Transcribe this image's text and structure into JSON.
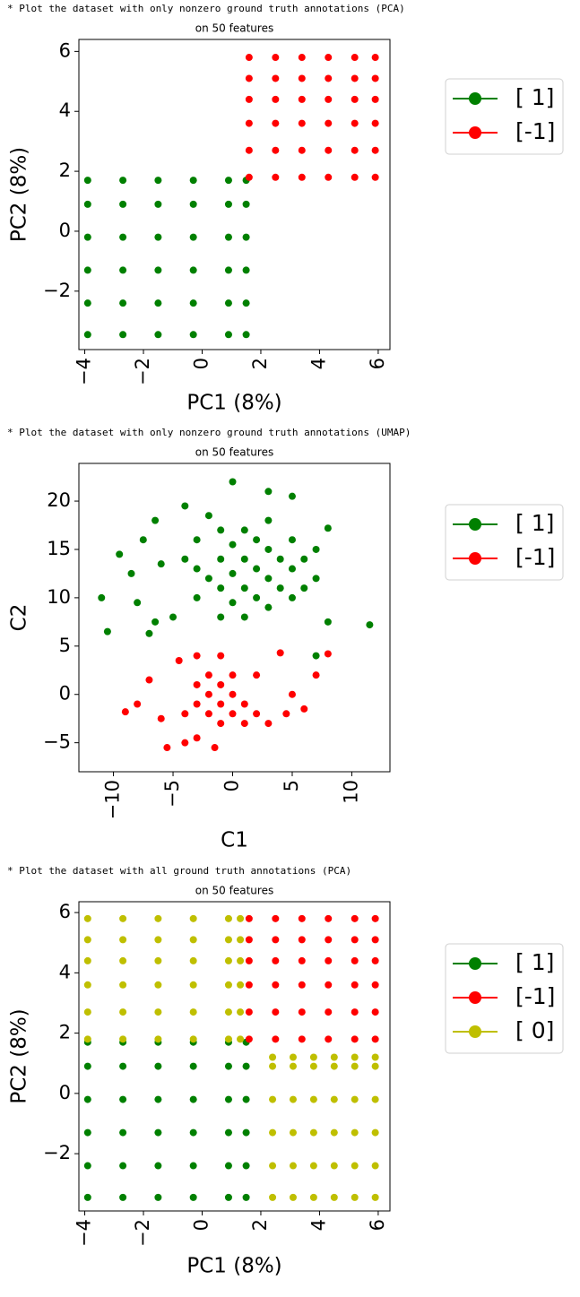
{
  "chart_data": [
    {
      "type": "scatter",
      "caption": "* Plot the dataset with only nonzero ground truth annotations (PCA)",
      "title": "on 50 features",
      "xlabel": "PC1 (8%)",
      "ylabel": "PC2 (8%)",
      "xlim": [
        -4.2,
        6.4
      ],
      "xticks": [
        {
          "value": -4,
          "label": "−4"
        },
        {
          "value": -2,
          "label": "−2"
        },
        0,
        2,
        4,
        6
      ],
      "ylim": [
        -3.95,
        6.4
      ],
      "yticks": [
        {
          "value": -2,
          "label": "−2"
        },
        0,
        2,
        4,
        6
      ],
      "legend": "outside-right",
      "series": [
        {
          "name": "[ 1]",
          "color": "#008000",
          "x": [
            -3.9,
            -3.9,
            -3.9,
            -3.9,
            -3.9,
            -3.9,
            -2.7,
            -2.7,
            -2.7,
            -2.7,
            -2.7,
            -2.7,
            -1.5,
            -1.5,
            -1.5,
            -1.5,
            -1.5,
            -1.5,
            -0.3,
            -0.3,
            -0.3,
            -0.3,
            -0.3,
            -0.3,
            0.9,
            0.9,
            0.9,
            0.9,
            0.9,
            0.9,
            1.5,
            1.5,
            1.5,
            1.5,
            1.5,
            1.5
          ],
          "y": [
            -3.45,
            -2.4,
            -1.3,
            -0.2,
            0.9,
            1.7,
            -3.45,
            -2.4,
            -1.3,
            -0.2,
            0.9,
            1.7,
            -3.45,
            -2.4,
            -1.3,
            -0.2,
            0.9,
            1.7,
            -3.45,
            -2.4,
            -1.3,
            -0.2,
            0.9,
            1.7,
            -3.45,
            -2.4,
            -1.3,
            -0.2,
            0.9,
            1.7,
            -3.45,
            -2.4,
            -1.3,
            -0.2,
            0.9,
            1.7
          ]
        },
        {
          "name": "[-1]",
          "color": "#ff0000",
          "x": [
            1.6,
            1.6,
            1.6,
            1.6,
            1.6,
            1.6,
            2.5,
            2.5,
            2.5,
            2.5,
            2.5,
            2.5,
            3.4,
            3.4,
            3.4,
            3.4,
            3.4,
            3.4,
            4.3,
            4.3,
            4.3,
            4.3,
            4.3,
            4.3,
            5.2,
            5.2,
            5.2,
            5.2,
            5.2,
            5.2,
            5.9,
            5.9,
            5.9,
            5.9,
            5.9,
            5.9
          ],
          "y": [
            1.8,
            2.7,
            3.6,
            4.4,
            5.1,
            5.8,
            1.8,
            2.7,
            3.6,
            4.4,
            5.1,
            5.8,
            1.8,
            2.7,
            3.6,
            4.4,
            5.1,
            5.8,
            1.8,
            2.7,
            3.6,
            4.4,
            5.1,
            5.8,
            1.8,
            2.7,
            3.6,
            4.4,
            5.1,
            5.8,
            1.8,
            2.7,
            3.6,
            4.4,
            5.1,
            5.8
          ]
        }
      ]
    },
    {
      "type": "scatter",
      "caption": "* Plot the dataset with only nonzero ground truth annotations (UMAP)",
      "title": "on 50 features",
      "xlabel": "C1",
      "ylabel": "C2",
      "xlim": [
        -12.9,
        13.2
      ],
      "xticks": [
        {
          "value": -10,
          "label": "−10"
        },
        {
          "value": -5,
          "label": "−5"
        },
        0,
        5,
        10
      ],
      "ylim": [
        -8,
        23.9
      ],
      "yticks": [
        {
          "value": -5,
          "label": "−5"
        },
        0,
        5,
        10,
        15,
        20
      ],
      "legend": "outside-right",
      "series": [
        {
          "name": "[ 1]",
          "color": "#008000",
          "x": [
            -3,
            -3,
            -3,
            -1,
            -1,
            -1,
            -1,
            1,
            1,
            1,
            1,
            3,
            3,
            3,
            3,
            5,
            5,
            5,
            7,
            7,
            -2,
            0,
            0,
            0,
            2,
            2,
            2,
            4,
            4,
            6,
            6,
            -4,
            -2,
            -11,
            -10.5,
            -9.5,
            -8.5,
            -8,
            -7.5,
            -6.5,
            -6,
            -5,
            -6.5,
            -4,
            0,
            3,
            5,
            8,
            8,
            11.5,
            7,
            -7
          ],
          "y": [
            10,
            13,
            16,
            8,
            11,
            14,
            17,
            8,
            11,
            14,
            17,
            9,
            12,
            15,
            18,
            10,
            13,
            16,
            12,
            15,
            12,
            9.5,
            12.5,
            15.5,
            10,
            13,
            16,
            11,
            14,
            11,
            14,
            14,
            18.5,
            10,
            6.5,
            14.5,
            12.5,
            9.5,
            16,
            18,
            13.5,
            8,
            7.5,
            19.5,
            22,
            21,
            20.5,
            17.2,
            7.5,
            7.2,
            4,
            6.3
          ]
        },
        {
          "name": "[-1]",
          "color": "#ff0000",
          "x": [
            -3,
            -2,
            -2,
            -1,
            -1,
            -1,
            0,
            0,
            1,
            1,
            -3,
            2,
            -4,
            0,
            -2,
            3,
            -9,
            -8,
            -7,
            -6,
            -5.5,
            -4.5,
            -4,
            -3,
            -3,
            -1,
            2,
            4,
            5,
            4.5,
            6,
            7,
            8,
            -1.5
          ],
          "y": [
            -1,
            0,
            -2,
            1,
            -1,
            -3,
            0,
            -2,
            -1,
            -3,
            1,
            -2,
            -2,
            2,
            2,
            -3,
            -1.8,
            -1,
            1.5,
            -2.5,
            -5.5,
            3.5,
            -5,
            -4.5,
            4,
            4,
            2,
            4.3,
            0,
            -2,
            -1.5,
            2,
            4.2,
            -5.5
          ]
        }
      ]
    },
    {
      "type": "scatter",
      "caption": "* Plot the dataset with all ground truth annotations (PCA)",
      "title": "on 50 features",
      "xlabel": "PC1 (8%)",
      "ylabel": "PC2 (8%)",
      "xlim": [
        -4.2,
        6.4
      ],
      "xticks": [
        {
          "value": -4,
          "label": "−4"
        },
        {
          "value": -2,
          "label": "−2"
        },
        0,
        2,
        4,
        6
      ],
      "ylim": [
        -3.9,
        6.36
      ],
      "yticks": [
        {
          "value": -2,
          "label": "−2"
        },
        0,
        2,
        4,
        6
      ],
      "legend": "outside-right",
      "series": [
        {
          "name": "[ 1]",
          "color": "#008000",
          "x": [
            -3.9,
            -3.9,
            -3.9,
            -3.9,
            -3.9,
            -3.9,
            -2.7,
            -2.7,
            -2.7,
            -2.7,
            -2.7,
            -2.7,
            -1.5,
            -1.5,
            -1.5,
            -1.5,
            -1.5,
            -1.5,
            -0.3,
            -0.3,
            -0.3,
            -0.3,
            -0.3,
            -0.3,
            0.9,
            0.9,
            0.9,
            0.9,
            0.9,
            0.9,
            1.5,
            1.5,
            1.5,
            1.5,
            1.5,
            1.5
          ],
          "y": [
            -3.45,
            -2.4,
            -1.3,
            -0.2,
            0.9,
            1.7,
            -3.45,
            -2.4,
            -1.3,
            -0.2,
            0.9,
            1.7,
            -3.45,
            -2.4,
            -1.3,
            -0.2,
            0.9,
            1.7,
            -3.45,
            -2.4,
            -1.3,
            -0.2,
            0.9,
            1.7,
            -3.45,
            -2.4,
            -1.3,
            -0.2,
            0.9,
            1.7,
            -3.45,
            -2.4,
            -1.3,
            -0.2,
            0.9,
            1.7
          ]
        },
        {
          "name": "[-1]",
          "color": "#ff0000",
          "x": [
            1.6,
            1.6,
            1.6,
            1.6,
            1.6,
            1.6,
            2.5,
            2.5,
            2.5,
            2.5,
            2.5,
            2.5,
            3.4,
            3.4,
            3.4,
            3.4,
            3.4,
            3.4,
            4.3,
            4.3,
            4.3,
            4.3,
            4.3,
            4.3,
            5.2,
            5.2,
            5.2,
            5.2,
            5.2,
            5.2,
            5.9,
            5.9,
            5.9,
            5.9,
            5.9,
            5.9
          ],
          "y": [
            1.8,
            2.7,
            3.6,
            4.4,
            5.1,
            5.8,
            1.8,
            2.7,
            3.6,
            4.4,
            5.1,
            5.8,
            1.8,
            2.7,
            3.6,
            4.4,
            5.1,
            5.8,
            1.8,
            2.7,
            3.6,
            4.4,
            5.1,
            5.8,
            1.8,
            2.7,
            3.6,
            4.4,
            5.1,
            5.8,
            1.8,
            2.7,
            3.6,
            4.4,
            5.1,
            5.8
          ]
        },
        {
          "name": "[ 0]",
          "color": "#bfbf00",
          "x": [
            -3.9,
            -3.9,
            -3.9,
            -3.9,
            -3.9,
            -3.9,
            -2.7,
            -2.7,
            -2.7,
            -2.7,
            -2.7,
            -2.7,
            -1.5,
            -1.5,
            -1.5,
            -1.5,
            -1.5,
            -1.5,
            -0.3,
            -0.3,
            -0.3,
            -0.3,
            -0.3,
            -0.3,
            0.9,
            0.9,
            0.9,
            0.9,
            0.9,
            0.9,
            1.3,
            1.3,
            1.3,
            1.3,
            1.3,
            1.3,
            2.4,
            2.4,
            2.4,
            2.4,
            2.4,
            2.4,
            3.1,
            3.1,
            3.1,
            3.1,
            3.1,
            3.1,
            3.8,
            3.8,
            3.8,
            3.8,
            3.8,
            3.8,
            4.5,
            4.5,
            4.5,
            4.5,
            4.5,
            4.5,
            5.2,
            5.2,
            5.2,
            5.2,
            5.2,
            5.2,
            5.9,
            5.9,
            5.9,
            5.9,
            5.9,
            5.9
          ],
          "y": [
            1.8,
            2.7,
            3.6,
            4.4,
            5.1,
            5.8,
            1.8,
            2.7,
            3.6,
            4.4,
            5.1,
            5.8,
            1.8,
            2.7,
            3.6,
            4.4,
            5.1,
            5.8,
            1.8,
            2.7,
            3.6,
            4.4,
            5.1,
            5.8,
            1.8,
            2.7,
            3.6,
            4.4,
            5.1,
            5.8,
            1.8,
            2.7,
            3.6,
            4.4,
            5.1,
            5.8,
            -3.45,
            -2.4,
            -1.3,
            -0.2,
            0.9,
            1.2,
            -3.45,
            -2.4,
            -1.3,
            -0.2,
            0.9,
            1.2,
            -3.45,
            -2.4,
            -1.3,
            -0.2,
            0.9,
            1.2,
            -3.45,
            -2.4,
            -1.3,
            -0.2,
            0.9,
            1.2,
            -3.45,
            -2.4,
            -1.3,
            -0.2,
            0.9,
            1.2,
            -3.45,
            -2.4,
            -1.3,
            -0.2,
            0.9,
            1.2
          ]
        }
      ]
    }
  ]
}
